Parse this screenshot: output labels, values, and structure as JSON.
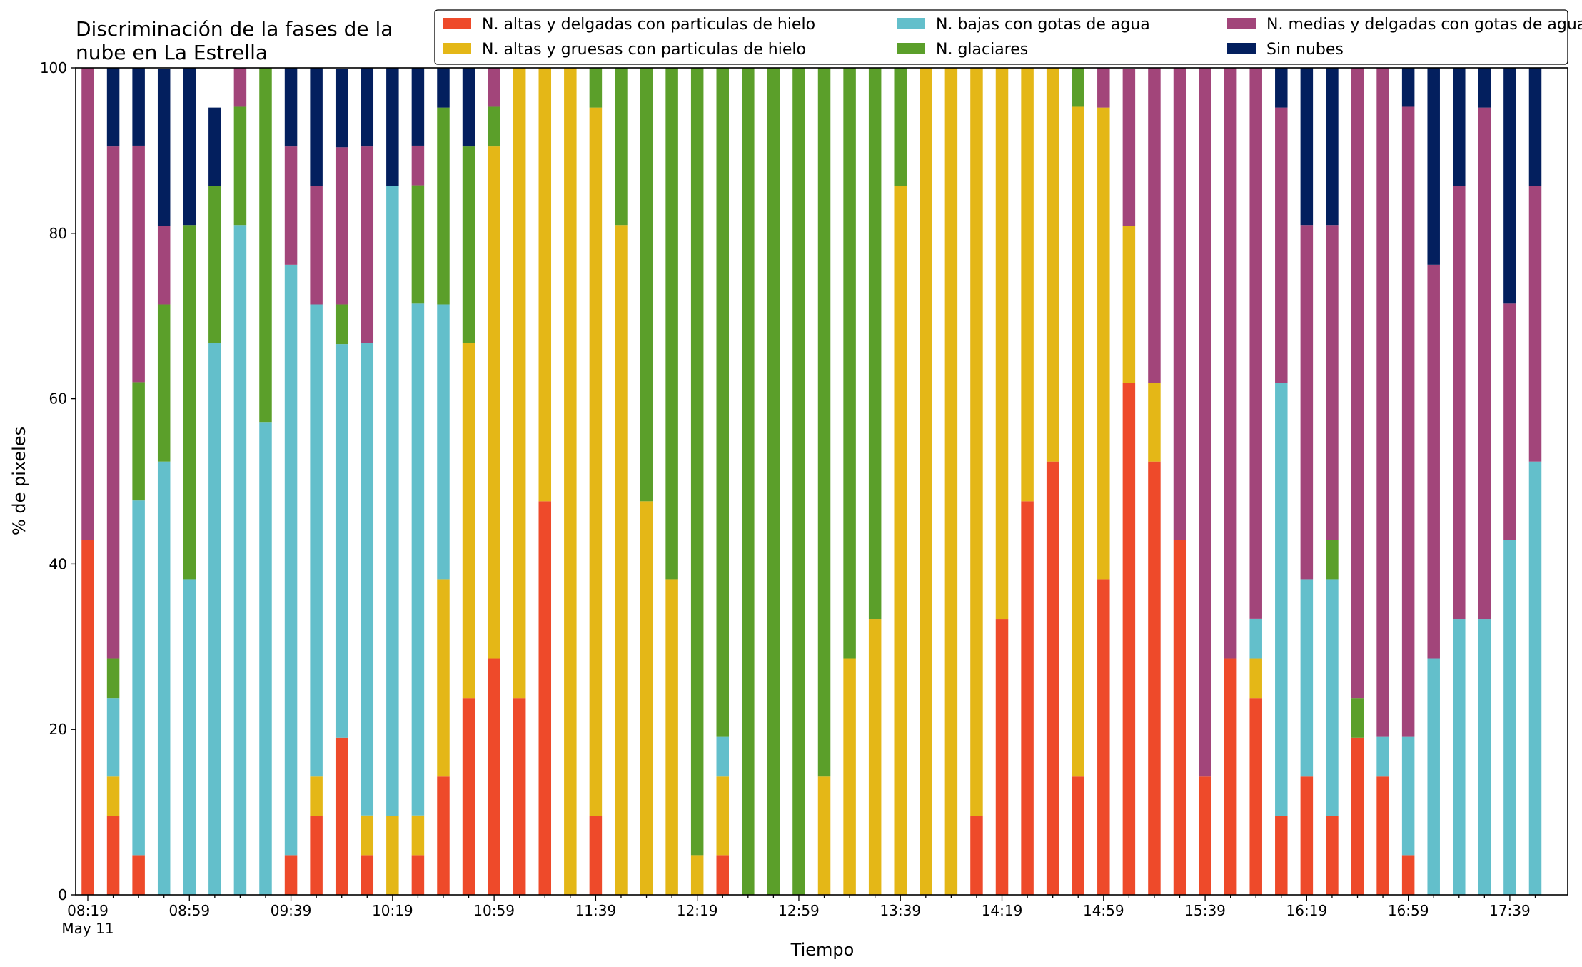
{
  "chart_data": {
    "type": "bar",
    "stacked": true,
    "title_lines": [
      "Discriminación de la fases de la",
      "nube en La Estrella"
    ],
    "xlabel": "Tiempo",
    "ylabel": "% de pixeles",
    "ylim": [
      0,
      100
    ],
    "yticks": [
      0,
      20,
      40,
      60,
      80,
      100
    ],
    "xtick_labels": [
      "08:19",
      "08:59",
      "09:39",
      "10:19",
      "10:59",
      "11:39",
      "12:19",
      "12:59",
      "13:39",
      "14:19",
      "14:59",
      "15:39",
      "16:19",
      "16:59",
      "17:39"
    ],
    "x_date_label": "May 11",
    "grid": false,
    "legend_position": "top-right",
    "categories": [
      "08:19",
      "08:29",
      "08:39",
      "08:49",
      "08:59",
      "09:09",
      "09:19",
      "09:29",
      "09:39",
      "09:49",
      "09:59",
      "10:09",
      "10:19",
      "10:29",
      "10:39",
      "10:49",
      "10:59",
      "11:09",
      "11:19",
      "11:29",
      "11:39",
      "11:49",
      "11:59",
      "12:09",
      "12:19",
      "12:29",
      "12:39",
      "12:49",
      "12:59",
      "13:09",
      "13:19",
      "13:29",
      "13:39",
      "13:49",
      "13:59",
      "14:09",
      "14:19",
      "14:29",
      "14:39",
      "14:49",
      "14:59",
      "15:09",
      "15:19",
      "15:29",
      "15:39",
      "15:49",
      "15:59",
      "16:09",
      "16:19",
      "16:29",
      "16:39",
      "16:49",
      "16:59",
      "17:09",
      "17:19",
      "17:29",
      "17:39",
      "17:49"
    ],
    "series": [
      {
        "name": "N. altas y delgadas con particulas de hielo",
        "color": "#ee4a2a",
        "values": [
          42.9,
          9.5,
          4.8,
          0,
          0,
          0,
          0,
          0,
          4.8,
          9.5,
          19.0,
          4.8,
          0,
          4.8,
          14.3,
          23.8,
          28.6,
          23.8,
          47.6,
          0,
          9.5,
          0,
          0,
          0,
          0,
          4.8,
          0,
          0,
          0,
          0,
          0,
          0,
          0,
          0,
          0,
          9.5,
          33.3,
          47.6,
          52.4,
          14.3,
          38.1,
          61.9,
          52.4,
          42.9,
          14.3,
          28.6,
          23.8,
          9.5,
          14.3,
          9.5,
          19.0,
          14.3,
          4.8,
          0,
          0,
          0,
          0,
          0
        ]
      },
      {
        "name": "N. altas y gruesas con particulas de hielo",
        "color": "#e4b717",
        "values": [
          0,
          4.8,
          0,
          0,
          0,
          0,
          0,
          0,
          0,
          4.8,
          0,
          4.8,
          9.5,
          4.8,
          23.8,
          42.9,
          61.9,
          76.2,
          52.4,
          100,
          85.7,
          81.0,
          47.6,
          38.1,
          4.8,
          9.5,
          0,
          0,
          0,
          14.3,
          28.6,
          33.3,
          85.7,
          100,
          100,
          90.5,
          66.7,
          52.4,
          47.6,
          81.0,
          57.1,
          19.0,
          9.5,
          0,
          0,
          0,
          4.8,
          0,
          0,
          0,
          0,
          0,
          0,
          0,
          0,
          0,
          0,
          0
        ]
      },
      {
        "name": "N. bajas con gotas de agua",
        "color": "#63bfcb",
        "values": [
          0,
          9.5,
          42.9,
          52.4,
          38.1,
          66.7,
          81.0,
          57.1,
          71.4,
          57.1,
          47.6,
          57.1,
          76.2,
          61.9,
          33.3,
          0,
          0,
          0,
          0,
          0,
          0,
          0,
          0,
          0,
          0,
          4.8,
          0,
          0,
          0,
          0,
          0,
          0,
          0,
          0,
          0,
          0,
          0,
          0,
          0,
          0,
          0,
          0,
          0,
          0,
          0,
          0,
          4.8,
          52.4,
          23.8,
          28.6,
          0,
          4.8,
          14.3,
          28.6,
          33.3,
          33.3,
          42.9,
          52.4
        ]
      },
      {
        "name": "N. glaciares",
        "color": "#5b9f2a",
        "values": [
          0,
          4.8,
          14.3,
          19.0,
          42.9,
          19.0,
          14.3,
          42.9,
          0,
          0,
          4.8,
          0,
          0,
          14.3,
          23.8,
          23.8,
          4.8,
          0,
          0,
          0,
          4.8,
          19.0,
          52.4,
          61.9,
          95.2,
          81.0,
          100,
          100,
          100,
          85.7,
          71.4,
          66.7,
          14.3,
          0,
          0,
          0,
          0,
          0,
          0,
          4.8,
          0,
          0,
          0,
          0,
          0,
          0,
          0,
          0,
          0,
          4.8,
          4.8,
          0,
          0,
          0,
          0,
          0,
          0,
          0
        ]
      },
      {
        "name": "N. medias y delgadas con gotas de agua",
        "color": "#a2457a",
        "values": [
          57.1,
          61.9,
          28.6,
          9.5,
          0,
          0,
          4.8,
          0,
          14.3,
          14.3,
          19.0,
          23.8,
          0,
          4.8,
          0,
          0,
          4.8,
          0,
          0,
          0,
          0,
          0,
          0,
          0,
          0,
          0,
          0,
          0,
          0,
          0,
          0,
          0,
          0,
          0,
          0,
          0,
          0,
          0,
          0,
          0,
          4.8,
          19.0,
          38.1,
          57.1,
          85.7,
          71.4,
          66.7,
          33.3,
          42.9,
          38.1,
          76.2,
          81.0,
          76.2,
          47.6,
          52.4,
          61.9,
          28.6,
          33.3
        ]
      },
      {
        "name": "Sin nubes",
        "color": "#031f5e",
        "values": [
          0,
          9.5,
          9.5,
          19.0,
          19.0,
          9.5,
          4.8,
          0,
          9.5,
          14.3,
          9.5,
          9.5,
          14.3,
          9.5,
          4.8,
          9.5,
          0,
          0,
          0,
          0,
          0,
          0,
          0,
          0,
          0,
          0,
          0,
          0,
          0,
          0,
          0,
          0,
          0,
          0,
          0,
          0,
          0,
          0,
          0,
          0,
          0,
          0,
          0,
          0,
          0,
          0,
          0,
          4.8,
          19.0,
          19.0,
          0,
          0,
          4.8,
          23.8,
          14.3,
          4.8,
          28.6,
          14.3
        ]
      }
    ]
  }
}
